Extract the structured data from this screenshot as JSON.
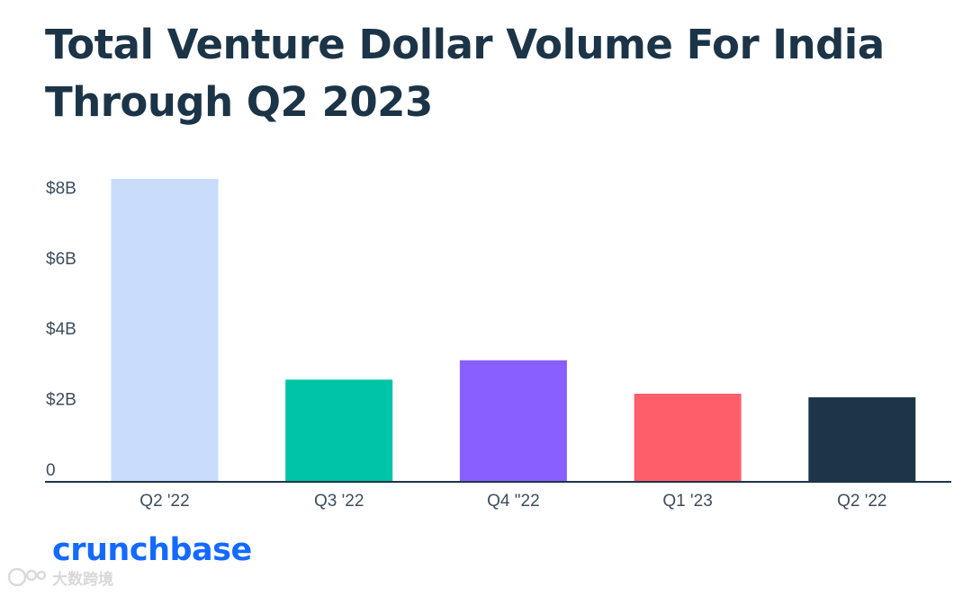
{
  "chart_data": {
    "type": "bar",
    "title_lines": [
      "Total Venture Dollar Volume For India",
      "Through Q2 2023"
    ],
    "categories": [
      "Q2 '22",
      "Q3 '22",
      "Q4 \"22",
      "Q1 '23",
      "Q2 '22"
    ],
    "values": [
      8.6,
      2.9,
      3.45,
      2.5,
      2.4
    ],
    "colors": [
      "#c9dcfc",
      "#00c4a7",
      "#8a5fff",
      "#fe5e6a",
      "#1d3549"
    ],
    "y_ticks": [
      {
        "value": 0,
        "label": "0"
      },
      {
        "value": 2,
        "label": "$2B"
      },
      {
        "value": 4,
        "label": "$4B"
      },
      {
        "value": 6,
        "label": "$6B"
      },
      {
        "value": 8,
        "label": "$8B"
      }
    ],
    "ylim": [
      0,
      8.6
    ],
    "unit": "$B",
    "grid": false,
    "legend": "none"
  },
  "brand": {
    "name": "crunchbase",
    "color": "#146aff"
  },
  "watermark": {
    "text": "大数跨境",
    "icon": "watermark-logo-icon"
  }
}
